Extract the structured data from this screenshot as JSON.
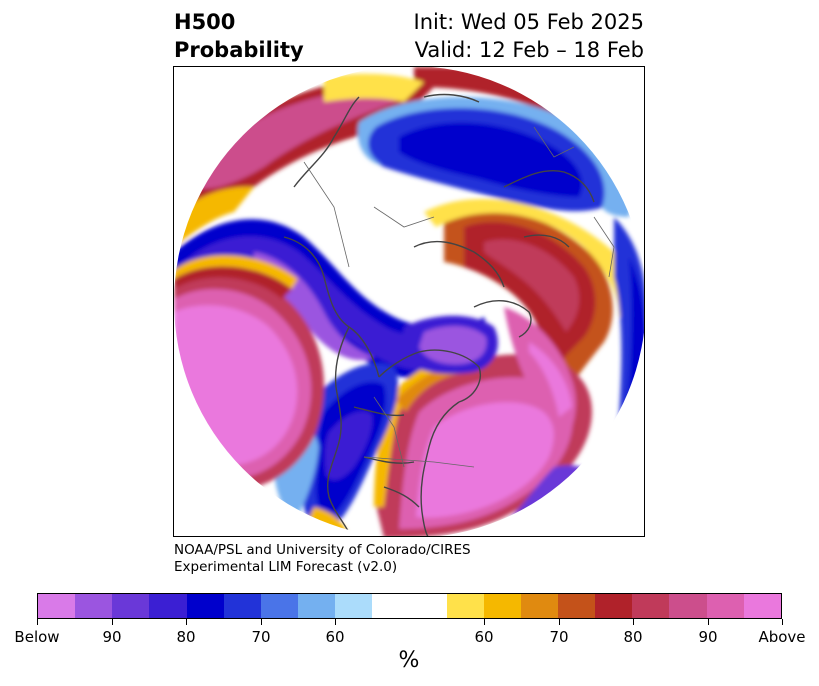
{
  "header": {
    "title_lines": [
      "H500",
      "Probability"
    ],
    "right_lines": [
      "Init: Wed 05 Feb 2025",
      "Valid: 12 Feb – 18 Feb"
    ]
  },
  "credit_lines": [
    "NOAA/PSL and University of Colorado/CIRES",
    "Experimental LIM Forecast (v2.0)"
  ],
  "colorbar": {
    "colors": [
      "#d97ae8",
      "#9b55e0",
      "#6a38d8",
      "#3b1fd3",
      "#0000cc",
      "#2233d8",
      "#4a74e8",
      "#74b0f0",
      "#abdcfb",
      "#ffffff",
      "#ffffff",
      "#ffe14a",
      "#f5b800",
      "#e08a10",
      "#c4521a",
      "#b0222a",
      "#c03a5a",
      "#cc4e8c",
      "#dd60b0",
      "#ea78dd"
    ],
    "tick_labels": [
      "Below",
      "90",
      "80",
      "70",
      "60",
      "60",
      "70",
      "80",
      "90",
      "Above"
    ],
    "unit": "%"
  },
  "map": {
    "projection": "north-polar-stereographic",
    "field": "500-hPa height probability (Below / Above normal)"
  }
}
